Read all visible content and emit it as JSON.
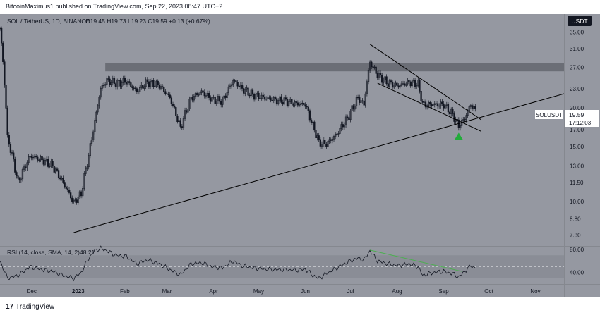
{
  "header": {
    "publisher_line": "BitcoinMaximus1 published on TradingView.com, Sep 22, 2023 08:47 UTC+2"
  },
  "footer": {
    "logo_mark": "17",
    "logo_text": "TradingView"
  },
  "colors": {
    "background": "#9598a1",
    "candle": "#131722",
    "resistance_zone": "#6b6e76",
    "rsi_sma": "#4caf50",
    "signal_arrow": "#22ab3a",
    "label_box": "#ffffff"
  },
  "chart_data": [
    {
      "type": "candlestick",
      "legend": {
        "symbol": "SOL / TetherUS, 1D, BINANCE",
        "ohlc": "O19.45 H19.73 L19.23 C19.59 +0.13 (+0.67%)"
      },
      "currency_badge": "USDT",
      "price_label": {
        "symbol": "SOLUSDT",
        "price": "19.59",
        "countdown": "17:12:03"
      },
      "y_axis": {
        "scale": "log",
        "ylim": [
          7.2,
          40
        ],
        "ticks": [
          "35.00",
          "31.00",
          "27.00",
          "23.00",
          "20.00",
          "17.00",
          "15.00",
          "13.00",
          "11.50",
          "10.00",
          "8.80",
          "7.80"
        ]
      },
      "x_axis": {
        "range": [
          "2022-11-10",
          "2023-11-20"
        ],
        "ticks": [
          {
            "date": "2022-12-01",
            "label": "Dec",
            "bold": false
          },
          {
            "date": "2023-01-01",
            "label": "2023",
            "bold": true
          },
          {
            "date": "2023-02-01",
            "label": "Feb",
            "bold": false
          },
          {
            "date": "2023-03-01",
            "label": "Mar",
            "bold": false
          },
          {
            "date": "2023-04-01",
            "label": "Apr",
            "bold": false
          },
          {
            "date": "2023-05-01",
            "label": "May",
            "bold": false
          },
          {
            "date": "2023-06-01",
            "label": "Jun",
            "bold": false
          },
          {
            "date": "2023-07-01",
            "label": "Jul",
            "bold": false
          },
          {
            "date": "2023-08-01",
            "label": "Aug",
            "bold": false
          },
          {
            "date": "2023-09-01",
            "label": "Sep",
            "bold": false
          },
          {
            "date": "2023-10-01",
            "label": "Oct",
            "bold": false
          },
          {
            "date": "2023-11-01",
            "label": "Nov",
            "bold": false
          }
        ]
      },
      "close_path": [
        [
          "2022-11-10",
          36.0
        ],
        [
          "2022-11-15",
          16.0
        ],
        [
          "2022-11-22",
          11.5
        ],
        [
          "2022-11-30",
          14.0
        ],
        [
          "2022-12-08",
          13.6
        ],
        [
          "2022-12-15",
          13.0
        ],
        [
          "2022-12-22",
          11.5
        ],
        [
          "2022-12-29",
          9.9
        ],
        [
          "2023-01-03",
          10.6
        ],
        [
          "2023-01-08",
          14.0
        ],
        [
          "2023-01-12",
          18.0
        ],
        [
          "2023-01-16",
          23.0
        ],
        [
          "2023-01-20",
          24.5
        ],
        [
          "2023-01-26",
          24.0
        ],
        [
          "2023-02-02",
          24.3
        ],
        [
          "2023-02-09",
          22.6
        ],
        [
          "2023-02-16",
          24.2
        ],
        [
          "2023-02-24",
          23.6
        ],
        [
          "2023-03-03",
          21.5
        ],
        [
          "2023-03-10",
          17.2
        ],
        [
          "2023-03-17",
          21.5
        ],
        [
          "2023-03-24",
          22.5
        ],
        [
          "2023-03-31",
          21.3
        ],
        [
          "2023-04-07",
          21.0
        ],
        [
          "2023-04-14",
          24.5
        ],
        [
          "2023-04-20",
          23.0
        ],
        [
          "2023-04-27",
          22.0
        ],
        [
          "2023-05-05",
          21.5
        ],
        [
          "2023-05-12",
          21.2
        ],
        [
          "2023-05-19",
          21.0
        ],
        [
          "2023-05-26",
          20.6
        ],
        [
          "2023-06-01",
          20.5
        ],
        [
          "2023-06-06",
          17.5
        ],
        [
          "2023-06-10",
          15.5
        ],
        [
          "2023-06-15",
          15.3
        ],
        [
          "2023-06-22",
          16.5
        ],
        [
          "2023-06-29",
          18.5
        ],
        [
          "2023-07-06",
          21.5
        ],
        [
          "2023-07-10",
          20.5
        ],
        [
          "2023-07-14",
          28.0
        ],
        [
          "2023-07-19",
          25.5
        ],
        [
          "2023-07-26",
          24.0
        ],
        [
          "2023-08-02",
          23.5
        ],
        [
          "2023-08-09",
          24.2
        ],
        [
          "2023-08-15",
          23.8
        ],
        [
          "2023-08-18",
          20.5
        ],
        [
          "2023-08-25",
          20.5
        ],
        [
          "2023-09-01",
          20.5
        ],
        [
          "2023-09-07",
          19.0
        ],
        [
          "2023-09-11",
          17.5
        ],
        [
          "2023-09-15",
          18.5
        ],
        [
          "2023-09-19",
          20.5
        ],
        [
          "2023-09-22",
          19.59
        ]
      ],
      "drawings": {
        "resistance_zone": {
          "from": "2023-01-19",
          "to": "2023-11-20",
          "low": 26.2,
          "high": 27.8
        },
        "ascending_support": [
          [
            "2022-12-29",
            7.95
          ],
          [
            "2023-11-20",
            22.2
          ]
        ],
        "channel_upper": [
          [
            "2023-07-14",
            32.0
          ],
          [
            "2023-09-26",
            18.3
          ]
        ],
        "channel_lower": [
          [
            "2023-07-19",
            24.0
          ],
          [
            "2023-09-26",
            16.8
          ]
        ],
        "signal_arrow": {
          "date": "2023-09-11",
          "value": 16.2
        }
      }
    },
    {
      "type": "line",
      "panel": "RSI",
      "legend": {
        "label": "RSI (14, close, SMA, 14, 2)",
        "value": "48.21"
      },
      "ylim": [
        20,
        85
      ],
      "ticks": [
        "80.00",
        "40.00"
      ],
      "band": [
        30,
        70
      ],
      "midline": 50,
      "series": [
        {
          "values": [
            [
              "2022-11-10",
              60
            ],
            [
              "2022-11-15",
              30
            ],
            [
              "2022-11-22",
              35
            ],
            [
              "2022-11-30",
              50
            ],
            [
              "2022-12-08",
              45
            ],
            [
              "2022-12-15",
              42
            ],
            [
              "2022-12-22",
              35
            ],
            [
              "2022-12-29",
              30
            ],
            [
              "2023-01-03",
              40
            ],
            [
              "2023-01-08",
              65
            ],
            [
              "2023-01-12",
              78
            ],
            [
              "2023-01-16",
              82
            ],
            [
              "2023-01-20",
              78
            ],
            [
              "2023-01-26",
              70
            ],
            [
              "2023-02-02",
              68
            ],
            [
              "2023-02-09",
              55
            ],
            [
              "2023-02-16",
              62
            ],
            [
              "2023-02-24",
              55
            ],
            [
              "2023-03-03",
              45
            ],
            [
              "2023-03-10",
              36
            ],
            [
              "2023-03-17",
              55
            ],
            [
              "2023-03-24",
              57
            ],
            [
              "2023-03-31",
              50
            ],
            [
              "2023-04-07",
              48
            ],
            [
              "2023-04-14",
              60
            ],
            [
              "2023-04-20",
              52
            ],
            [
              "2023-04-27",
              48
            ],
            [
              "2023-05-05",
              46
            ],
            [
              "2023-05-12",
              45
            ],
            [
              "2023-05-19",
              45
            ],
            [
              "2023-05-26",
              44
            ],
            [
              "2023-06-01",
              46
            ],
            [
              "2023-06-06",
              35
            ],
            [
              "2023-06-10",
              30
            ],
            [
              "2023-06-15",
              38
            ],
            [
              "2023-06-22",
              48
            ],
            [
              "2023-06-29",
              58
            ],
            [
              "2023-07-06",
              65
            ],
            [
              "2023-07-10",
              62
            ],
            [
              "2023-07-14",
              78
            ],
            [
              "2023-07-19",
              60
            ],
            [
              "2023-07-26",
              55
            ],
            [
              "2023-08-02",
              52
            ],
            [
              "2023-08-09",
              55
            ],
            [
              "2023-08-15",
              50
            ],
            [
              "2023-08-18",
              35
            ],
            [
              "2023-08-25",
              40
            ],
            [
              "2023-09-01",
              42
            ],
            [
              "2023-09-07",
              38
            ],
            [
              "2023-09-11",
              32
            ],
            [
              "2023-09-15",
              42
            ],
            [
              "2023-09-19",
              52
            ],
            [
              "2023-09-22",
              48.21
            ]
          ]
        }
      ],
      "trendline": [
        [
          "2023-07-14",
          79
        ],
        [
          "2023-09-13",
          42
        ]
      ]
    }
  ]
}
